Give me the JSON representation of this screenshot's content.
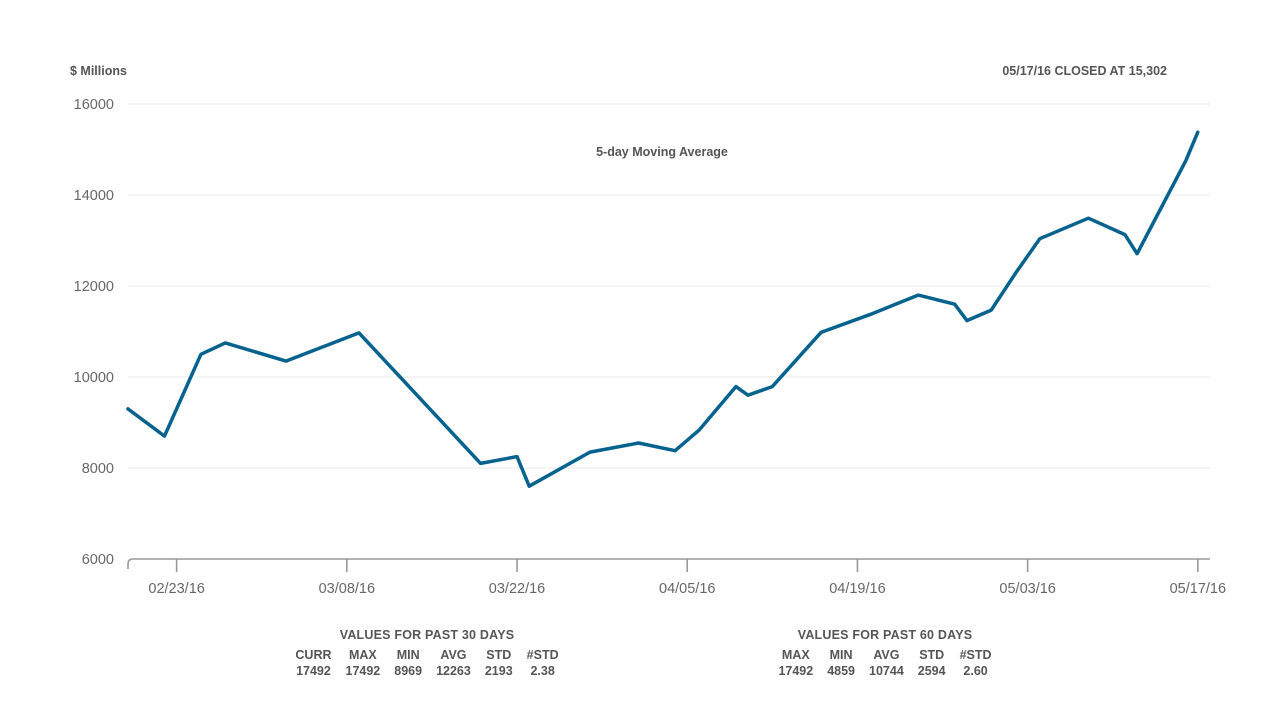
{
  "header": {
    "units": "$ Millions",
    "closed_note": "05/17/16 CLOSED AT 15,302"
  },
  "chart_data": {
    "type": "line",
    "annotation": "5-day Moving Average",
    "ylabel": "$ Millions",
    "ylim": [
      6000,
      16000
    ],
    "yticks": [
      6000,
      8000,
      10000,
      12000,
      14000,
      16000
    ],
    "xlim": [
      "2016-02-19",
      "2016-05-18"
    ],
    "xticks": [
      {
        "date": "2016-02-23",
        "label": "02/23/16"
      },
      {
        "date": "2016-03-08",
        "label": "03/08/16"
      },
      {
        "date": "2016-03-22",
        "label": "03/22/16"
      },
      {
        "date": "2016-04-05",
        "label": "04/05/16"
      },
      {
        "date": "2016-04-19",
        "label": "04/19/16"
      },
      {
        "date": "2016-05-03",
        "label": "05/03/16"
      },
      {
        "date": "2016-05-17",
        "label": "05/17/16"
      }
    ],
    "grid": true,
    "color": "#05628f",
    "series": [
      {
        "x": [
          "2016-02-19",
          "2016-02-22",
          "2016-02-25",
          "2016-02-27",
          "2016-03-03",
          "2016-03-09",
          "2016-03-19",
          "2016-03-22",
          "2016-03-23",
          "2016-03-28",
          "2016-04-01",
          "2016-04-04",
          "2016-04-06",
          "2016-04-09",
          "2016-04-10",
          "2016-04-12",
          "2016-04-16",
          "2016-04-20",
          "2016-04-24",
          "2016-04-27",
          "2016-04-28",
          "2016-04-30",
          "2016-05-02",
          "2016-05-04",
          "2016-05-08",
          "2016-05-11",
          "2016-05-12",
          "2016-05-16",
          "2016-05-17"
        ],
        "y": [
          9300,
          8700,
          10500,
          10750,
          10350,
          10970,
          8100,
          8250,
          7600,
          8350,
          8550,
          8380,
          8840,
          9790,
          9600,
          9790,
          10980,
          11370,
          11800,
          11600,
          11240,
          11470,
          12280,
          13040,
          13490,
          13130,
          12710,
          14750,
          15380
        ]
      }
    ]
  },
  "stats": [
    {
      "title": "VALUES FOR  PAST 30 DAYS",
      "headers": [
        "CURR",
        "MAX",
        "MIN",
        "AVG",
        "STD",
        "#STD"
      ],
      "values": [
        "17492",
        "17492",
        "8969",
        "12263",
        "2193",
        "2.38"
      ]
    },
    {
      "title": "VALUES FOR  PAST 60 DAYS",
      "headers": [
        "MAX",
        "MIN",
        "AVG",
        "STD",
        "#STD"
      ],
      "values": [
        "17492",
        "4859",
        "10744",
        "2594",
        "2.60"
      ]
    }
  ]
}
